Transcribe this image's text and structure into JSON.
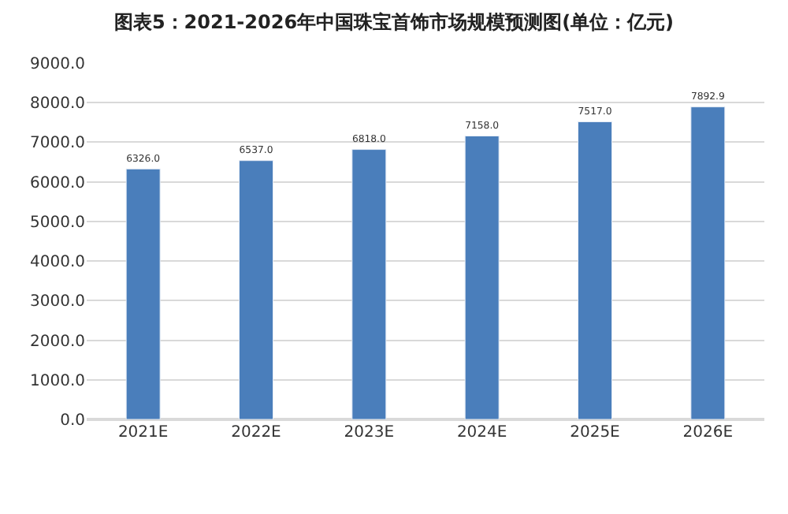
{
  "chart_data": {
    "type": "bar",
    "title": "图表5：2021-2026年中国珠宝首饰市场规模预测图(单位：亿元)",
    "categories": [
      "2021E",
      "2022E",
      "2023E",
      "2024E",
      "2025E",
      "2026E"
    ],
    "values": [
      6326.0,
      6537.0,
      6818.0,
      7158.0,
      7517.0,
      7892.9
    ],
    "value_labels": [
      "6326.0",
      "6537.0",
      "6818.0",
      "7158.0",
      "7517.0",
      "7892.9"
    ],
    "color": "#4a7ebb",
    "ylim": [
      0,
      9000
    ],
    "yticks": [
      {
        "value": 0,
        "label": "0.0"
      },
      {
        "value": 1000,
        "label": "1000.0"
      },
      {
        "value": 2000,
        "label": "2000.0"
      },
      {
        "value": 3000,
        "label": "3000.0"
      },
      {
        "value": 4000,
        "label": "4000.0"
      },
      {
        "value": 5000,
        "label": "5000.0"
      },
      {
        "value": 6000,
        "label": "6000.0"
      },
      {
        "value": 7000,
        "label": "7000.0"
      },
      {
        "value": 8000,
        "label": "8000.0"
      },
      {
        "value": 9000,
        "label": "9000.0"
      }
    ],
    "grid": "y"
  }
}
